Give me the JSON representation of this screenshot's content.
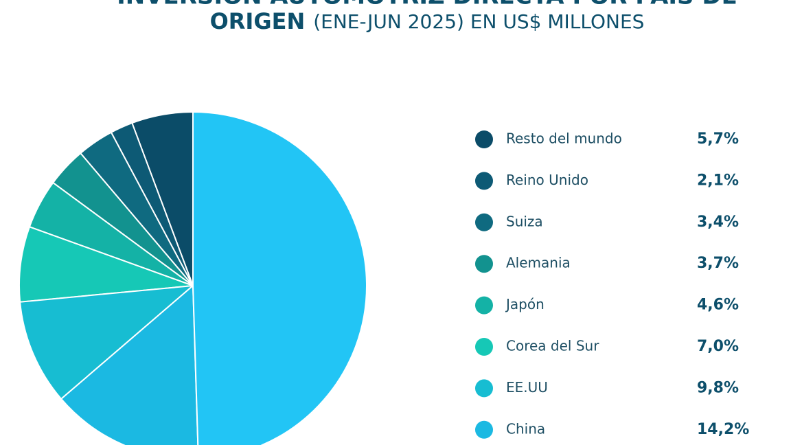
{
  "chart_data": {
    "type": "pie",
    "title": "INVERSIÓN AUTOMOTRIZ DIRECTA POR PAÍS DE",
    "title_bold": "ORIGEN",
    "subtitle": "(ENE-JUN 2025) EN US$ MILLONES",
    "categories": [
      "Resto del mundo",
      "Reino Unido",
      "Suiza",
      "Alemania",
      "Japón",
      "Corea del Sur",
      "EE.UU",
      "China",
      null
    ],
    "values": [
      5.7,
      2.1,
      3.4,
      3.7,
      4.6,
      7.0,
      9.8,
      14.2,
      49.5
    ],
    "value_labels": [
      "5,7%",
      "2,1%",
      "3,4%",
      "3,7%",
      "4,6%",
      "7,0%",
      "9,8%",
      "14,2%",
      null
    ],
    "colors": [
      "#0b4c68",
      "#0d5a75",
      "#0f6a80",
      "#12928f",
      "#14b2a6",
      "#16c8b6",
      "#17bdd2",
      "#1bb9e2",
      "#22c5f5"
    ]
  }
}
